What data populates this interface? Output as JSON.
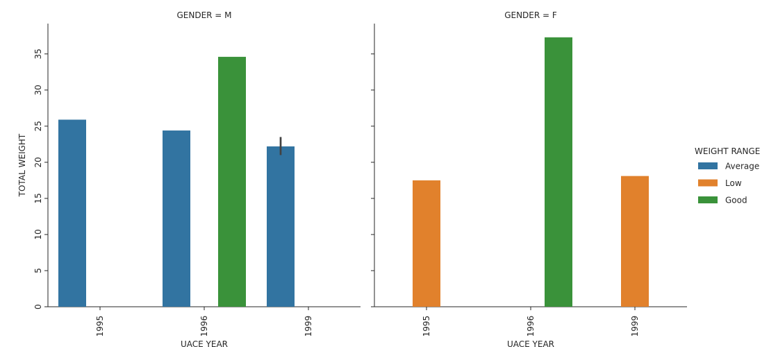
{
  "chart_data": {
    "type": "bar",
    "ylabel": "TOTAL WEIGHT",
    "xlabel": "UACE YEAR",
    "ylim": [
      0,
      39.2
    ],
    "yticks": [
      0,
      5,
      10,
      15,
      20,
      25,
      30,
      35
    ],
    "categories": [
      "1995",
      "1996",
      "1999"
    ],
    "legend": {
      "title": "WEIGHT RANGE",
      "placement": "right",
      "entries": [
        {
          "label": "Average",
          "color": "#3274a1"
        },
        {
          "label": "Low",
          "color": "#e1812c"
        },
        {
          "label": "Good",
          "color": "#3a923a"
        }
      ]
    },
    "panels": [
      {
        "title": "GENDER = M",
        "series": [
          {
            "name": "Average",
            "values": [
              25.9,
              24.4,
              22.2
            ],
            "error": [
              null,
              null,
              [
                21.0,
                23.5
              ]
            ]
          },
          {
            "name": "Low",
            "values": [
              null,
              null,
              null
            ]
          },
          {
            "name": "Good",
            "values": [
              null,
              34.6,
              null
            ]
          }
        ]
      },
      {
        "title": "GENDER = F",
        "series": [
          {
            "name": "Average",
            "values": [
              null,
              null,
              null
            ]
          },
          {
            "name": "Low",
            "values": [
              17.5,
              null,
              18.1
            ]
          },
          {
            "name": "Good",
            "values": [
              null,
              37.3,
              null
            ]
          }
        ]
      }
    ]
  }
}
